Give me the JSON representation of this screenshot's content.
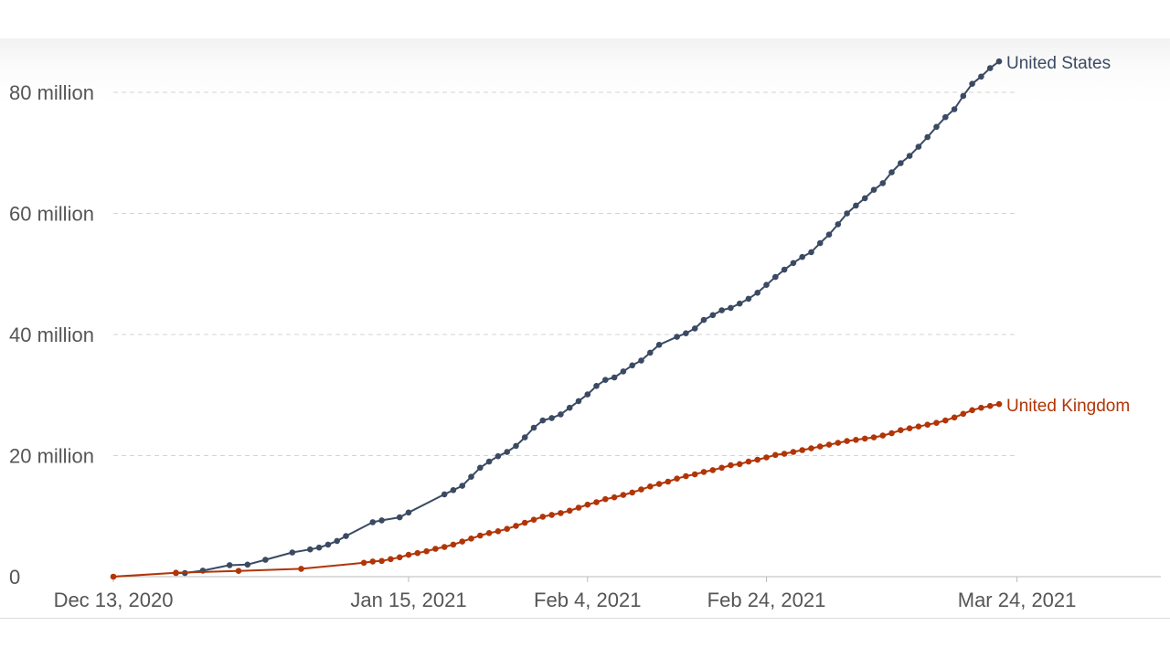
{
  "chart_data": {
    "type": "line",
    "title": "",
    "xlabel": "",
    "ylabel": "",
    "x_axis": {
      "type": "date",
      "range": [
        "2020-12-13",
        "2021-04-01"
      ],
      "ticks": [
        {
          "value": "2020-12-13",
          "label": "Dec 13, 2020"
        },
        {
          "value": "2021-01-15",
          "label": "Jan 15, 2021"
        },
        {
          "value": "2021-02-04",
          "label": "Feb 4, 2021"
        },
        {
          "value": "2021-02-24",
          "label": "Feb 24, 2021"
        },
        {
          "value": "2021-03-24",
          "label": "Mar 24, 2021"
        }
      ]
    },
    "y_axis": {
      "range": [
        0,
        86000000
      ],
      "ticks": [
        {
          "value": 0,
          "label": "0"
        },
        {
          "value": 20000000,
          "label": "20 million"
        },
        {
          "value": 40000000,
          "label": "40 million"
        },
        {
          "value": 60000000,
          "label": "60 million"
        },
        {
          "value": 80000000,
          "label": "80 million"
        }
      ]
    },
    "grid": true,
    "legend": "inline labels at line ends",
    "series": [
      {
        "name": "United States",
        "color": "#3b4a63",
        "points": [
          {
            "x": "2020-12-20",
            "y": 0.6
          },
          {
            "x": "2020-12-21",
            "y": 0.6
          },
          {
            "x": "2020-12-23",
            "y": 1.0
          },
          {
            "x": "2020-12-26",
            "y": 1.9
          },
          {
            "x": "2020-12-28",
            "y": 2.0
          },
          {
            "x": "2020-12-30",
            "y": 2.8
          },
          {
            "x": "2021-01-02",
            "y": 4.0
          },
          {
            "x": "2021-01-04",
            "y": 4.5
          },
          {
            "x": "2021-01-05",
            "y": 4.8
          },
          {
            "x": "2021-01-06",
            "y": 5.3
          },
          {
            "x": "2021-01-07",
            "y": 5.9
          },
          {
            "x": "2021-01-08",
            "y": 6.7
          },
          {
            "x": "2021-01-11",
            "y": 9.0
          },
          {
            "x": "2021-01-12",
            "y": 9.3
          },
          {
            "x": "2021-01-14",
            "y": 9.8
          },
          {
            "x": "2021-01-15",
            "y": 10.6
          },
          {
            "x": "2021-01-19",
            "y": 13.6
          },
          {
            "x": "2021-01-20",
            "y": 14.3
          },
          {
            "x": "2021-01-21",
            "y": 15.0
          },
          {
            "x": "2021-01-22",
            "y": 16.5
          },
          {
            "x": "2021-01-23",
            "y": 18.0
          },
          {
            "x": "2021-01-24",
            "y": 19.0
          },
          {
            "x": "2021-01-25",
            "y": 19.9
          },
          {
            "x": "2021-01-26",
            "y": 20.6
          },
          {
            "x": "2021-01-27",
            "y": 21.6
          },
          {
            "x": "2021-01-28",
            "y": 23.0
          },
          {
            "x": "2021-01-29",
            "y": 24.6
          },
          {
            "x": "2021-01-30",
            "y": 25.8
          },
          {
            "x": "2021-01-31",
            "y": 26.2
          },
          {
            "x": "2021-02-01",
            "y": 26.8
          },
          {
            "x": "2021-02-02",
            "y": 27.9
          },
          {
            "x": "2021-02-03",
            "y": 29.0
          },
          {
            "x": "2021-02-04",
            "y": 30.1
          },
          {
            "x": "2021-02-05",
            "y": 31.5
          },
          {
            "x": "2021-02-06",
            "y": 32.5
          },
          {
            "x": "2021-02-07",
            "y": 32.9
          },
          {
            "x": "2021-02-08",
            "y": 33.9
          },
          {
            "x": "2021-02-09",
            "y": 34.9
          },
          {
            "x": "2021-02-10",
            "y": 35.7
          },
          {
            "x": "2021-02-11",
            "y": 37.0
          },
          {
            "x": "2021-02-12",
            "y": 38.3
          },
          {
            "x": "2021-02-14",
            "y": 39.6
          },
          {
            "x": "2021-02-15",
            "y": 40.2
          },
          {
            "x": "2021-02-16",
            "y": 41.0
          },
          {
            "x": "2021-02-17",
            "y": 42.4
          },
          {
            "x": "2021-02-18",
            "y": 43.2
          },
          {
            "x": "2021-02-19",
            "y": 44.0
          },
          {
            "x": "2021-02-20",
            "y": 44.4
          },
          {
            "x": "2021-02-21",
            "y": 45.1
          },
          {
            "x": "2021-02-22",
            "y": 45.9
          },
          {
            "x": "2021-02-23",
            "y": 46.9
          },
          {
            "x": "2021-02-24",
            "y": 48.2
          },
          {
            "x": "2021-02-25",
            "y": 49.5
          },
          {
            "x": "2021-02-26",
            "y": 50.7
          },
          {
            "x": "2021-02-27",
            "y": 51.8
          },
          {
            "x": "2021-02-28",
            "y": 52.8
          },
          {
            "x": "2021-03-01",
            "y": 53.6
          },
          {
            "x": "2021-03-02",
            "y": 55.1
          },
          {
            "x": "2021-03-03",
            "y": 56.5
          },
          {
            "x": "2021-03-04",
            "y": 58.2
          },
          {
            "x": "2021-03-05",
            "y": 60.0
          },
          {
            "x": "2021-03-06",
            "y": 61.3
          },
          {
            "x": "2021-03-07",
            "y": 62.5
          },
          {
            "x": "2021-03-08",
            "y": 63.9
          },
          {
            "x": "2021-03-09",
            "y": 65.0
          },
          {
            "x": "2021-03-10",
            "y": 66.8
          },
          {
            "x": "2021-03-11",
            "y": 68.3
          },
          {
            "x": "2021-03-12",
            "y": 69.5
          },
          {
            "x": "2021-03-13",
            "y": 71.0
          },
          {
            "x": "2021-03-14",
            "y": 72.6
          },
          {
            "x": "2021-03-15",
            "y": 74.3
          },
          {
            "x": "2021-03-16",
            "y": 75.9
          },
          {
            "x": "2021-03-17",
            "y": 77.2
          },
          {
            "x": "2021-03-18",
            "y": 79.4
          },
          {
            "x": "2021-03-19",
            "y": 81.4
          },
          {
            "x": "2021-03-20",
            "y": 82.6
          },
          {
            "x": "2021-03-21",
            "y": 84.0
          },
          {
            "x": "2021-03-22",
            "y": 85.1
          }
        ]
      },
      {
        "name": "United Kingdom",
        "color": "#b13507",
        "points": [
          {
            "x": "2020-12-13",
            "y": 0.0
          },
          {
            "x": "2020-12-20",
            "y": 0.65
          },
          {
            "x": "2020-12-27",
            "y": 0.95
          },
          {
            "x": "2021-01-03",
            "y": 1.3
          },
          {
            "x": "2021-01-10",
            "y": 2.3
          },
          {
            "x": "2021-01-11",
            "y": 2.5
          },
          {
            "x": "2021-01-12",
            "y": 2.6
          },
          {
            "x": "2021-01-13",
            "y": 2.9
          },
          {
            "x": "2021-01-14",
            "y": 3.2
          },
          {
            "x": "2021-01-15",
            "y": 3.6
          },
          {
            "x": "2021-01-16",
            "y": 3.9
          },
          {
            "x": "2021-01-17",
            "y": 4.2
          },
          {
            "x": "2021-01-18",
            "y": 4.6
          },
          {
            "x": "2021-01-19",
            "y": 4.9
          },
          {
            "x": "2021-01-20",
            "y": 5.3
          },
          {
            "x": "2021-01-21",
            "y": 5.8
          },
          {
            "x": "2021-01-22",
            "y": 6.3
          },
          {
            "x": "2021-01-23",
            "y": 6.8
          },
          {
            "x": "2021-01-24",
            "y": 7.2
          },
          {
            "x": "2021-01-25",
            "y": 7.5
          },
          {
            "x": "2021-01-26",
            "y": 7.9
          },
          {
            "x": "2021-01-27",
            "y": 8.4
          },
          {
            "x": "2021-01-28",
            "y": 8.9
          },
          {
            "x": "2021-01-29",
            "y": 9.4
          },
          {
            "x": "2021-01-30",
            "y": 9.9
          },
          {
            "x": "2021-01-31",
            "y": 10.2
          },
          {
            "x": "2021-02-01",
            "y": 10.5
          },
          {
            "x": "2021-02-02",
            "y": 10.9
          },
          {
            "x": "2021-02-03",
            "y": 11.4
          },
          {
            "x": "2021-02-04",
            "y": 11.9
          },
          {
            "x": "2021-02-05",
            "y": 12.3
          },
          {
            "x": "2021-02-06",
            "y": 12.8
          },
          {
            "x": "2021-02-07",
            "y": 13.1
          },
          {
            "x": "2021-02-08",
            "y": 13.5
          },
          {
            "x": "2021-02-09",
            "y": 13.9
          },
          {
            "x": "2021-02-10",
            "y": 14.4
          },
          {
            "x": "2021-02-11",
            "y": 14.9
          },
          {
            "x": "2021-02-12",
            "y": 15.3
          },
          {
            "x": "2021-02-13",
            "y": 15.7
          },
          {
            "x": "2021-02-14",
            "y": 16.2
          },
          {
            "x": "2021-02-15",
            "y": 16.6
          },
          {
            "x": "2021-02-16",
            "y": 16.9
          },
          {
            "x": "2021-02-17",
            "y": 17.3
          },
          {
            "x": "2021-02-18",
            "y": 17.6
          },
          {
            "x": "2021-02-19",
            "y": 18.0
          },
          {
            "x": "2021-02-20",
            "y": 18.4
          },
          {
            "x": "2021-02-21",
            "y": 18.6
          },
          {
            "x": "2021-02-22",
            "y": 19.0
          },
          {
            "x": "2021-02-23",
            "y": 19.3
          },
          {
            "x": "2021-02-24",
            "y": 19.7
          },
          {
            "x": "2021-02-25",
            "y": 20.1
          },
          {
            "x": "2021-02-26",
            "y": 20.3
          },
          {
            "x": "2021-02-27",
            "y": 20.6
          },
          {
            "x": "2021-02-28",
            "y": 20.9
          },
          {
            "x": "2021-03-01",
            "y": 21.2
          },
          {
            "x": "2021-03-02",
            "y": 21.5
          },
          {
            "x": "2021-03-03",
            "y": 21.8
          },
          {
            "x": "2021-03-04",
            "y": 22.1
          },
          {
            "x": "2021-03-05",
            "y": 22.4
          },
          {
            "x": "2021-03-06",
            "y": 22.6
          },
          {
            "x": "2021-03-07",
            "y": 22.8
          },
          {
            "x": "2021-03-08",
            "y": 23.0
          },
          {
            "x": "2021-03-09",
            "y": 23.3
          },
          {
            "x": "2021-03-10",
            "y": 23.7
          },
          {
            "x": "2021-03-11",
            "y": 24.2
          },
          {
            "x": "2021-03-12",
            "y": 24.5
          },
          {
            "x": "2021-03-13",
            "y": 24.8
          },
          {
            "x": "2021-03-14",
            "y": 25.1
          },
          {
            "x": "2021-03-15",
            "y": 25.4
          },
          {
            "x": "2021-03-16",
            "y": 25.8
          },
          {
            "x": "2021-03-17",
            "y": 26.3
          },
          {
            "x": "2021-03-18",
            "y": 26.9
          },
          {
            "x": "2021-03-19",
            "y": 27.5
          },
          {
            "x": "2021-03-20",
            "y": 27.9
          },
          {
            "x": "2021-03-21",
            "y": 28.2
          },
          {
            "x": "2021-03-22",
            "y": 28.5
          }
        ]
      }
    ]
  },
  "colors": {
    "gridline": "#d4d4d4",
    "axis_line": "#bbbbbb",
    "tick_text": "#555555"
  }
}
